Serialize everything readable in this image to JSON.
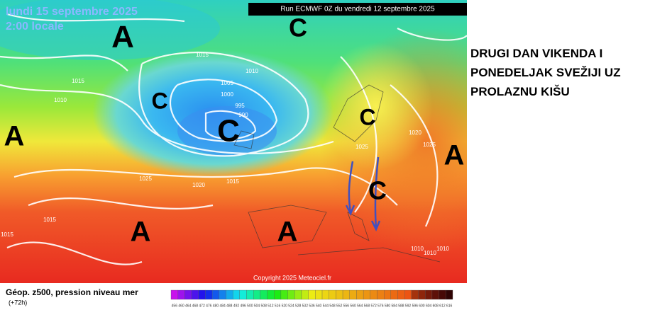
{
  "map": {
    "date": "lundi 15 septembre 2025",
    "time": "2:00 locale",
    "run": "Run ECMWF 0Z du vendredi 12 septembre 2025",
    "copyright": "Copyright 2025 Meteociel.fr",
    "centers": [
      "A",
      "C",
      "C",
      "C",
      "C",
      "C",
      "A",
      "A",
      "A",
      "A"
    ],
    "isobars": [
      1015,
      1010,
      1005,
      1000,
      995,
      990,
      1015,
      1010,
      1025,
      1020,
      1015,
      1015,
      1015,
      1020,
      1025,
      1010,
      1010,
      1010,
      1025
    ],
    "legend_title": "Géop. z500, pression niveau mer",
    "legend_step": "(+72h)",
    "scale": [
      456,
      460,
      464,
      468,
      472,
      476,
      480,
      484,
      488,
      492,
      496,
      500,
      504,
      508,
      512,
      516,
      520,
      524,
      528,
      532,
      536,
      540,
      544,
      548,
      552,
      556,
      560,
      564,
      568,
      572,
      576,
      580,
      584,
      588,
      592,
      596,
      600,
      604,
      608,
      612,
      616
    ]
  },
  "headline": [
    "DRUGI DAN VIKENDA I",
    "PONEDELJAK SVEŽIJI UZ",
    "PROLAZNU KIŠU"
  ]
}
